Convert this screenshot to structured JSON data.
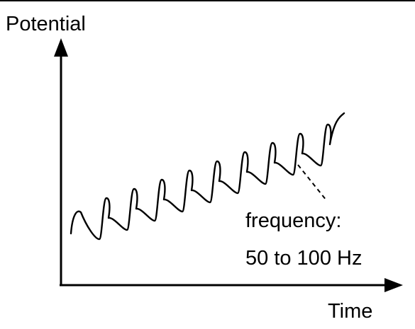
{
  "diagram": {
    "y_axis_label": "Potential",
    "x_axis_label": "Time",
    "annotation_line1": "frequency:",
    "annotation_line2": "50 to 100 Hz",
    "stroke_color": "#000000",
    "background_color": "#ffffff"
  }
}
